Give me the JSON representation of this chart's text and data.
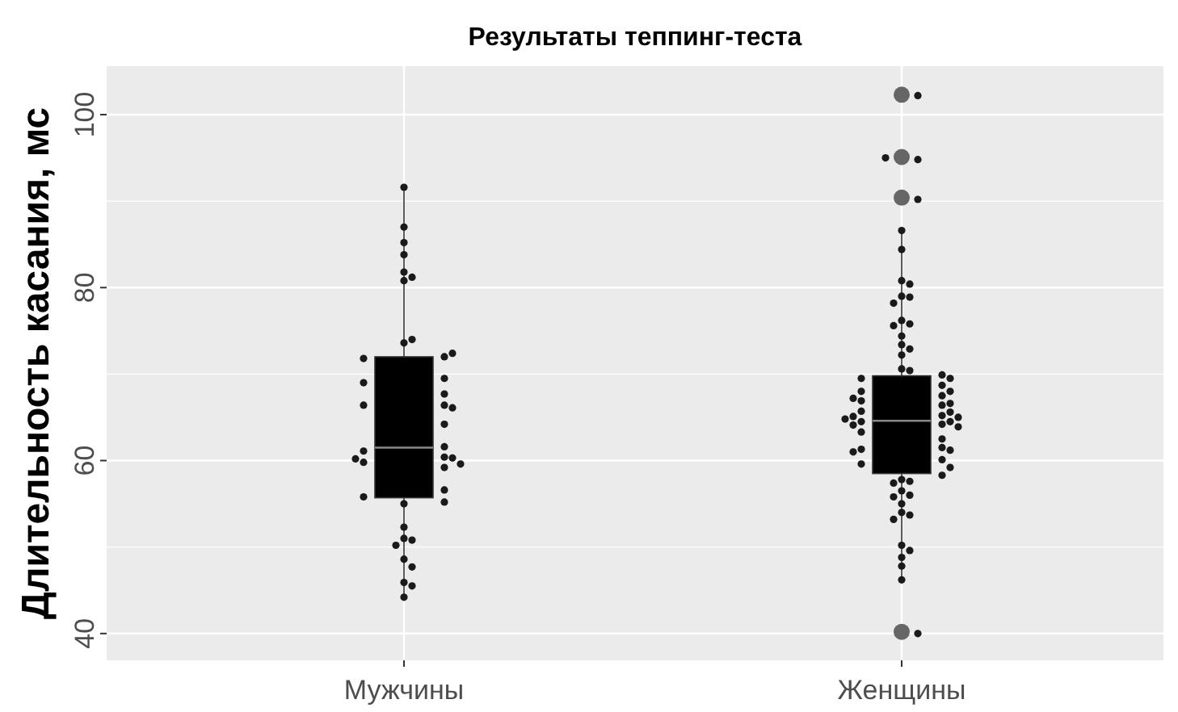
{
  "chart_data": {
    "type": "box",
    "title": "Результаты теппинг-теста",
    "ylabel": "Длительность касания, мс",
    "categories": [
      "Мужчины",
      "Женщины"
    ],
    "ylim": [
      36.9,
      105.6
    ],
    "yticks": [
      40,
      {
        "value": 50,
        "label": null
      },
      60,
      {
        "value": 70,
        "label": null
      },
      80,
      {
        "value": 90,
        "label": null
      },
      100
    ],
    "grid": true,
    "series": [
      {
        "color": "#000000",
        "boxes": [
          {
            "low": 44.2,
            "q1": 55.7,
            "median": 61.5,
            "q3": 72.0,
            "high": 91.5
          },
          {
            "low": 46.3,
            "q1": 58.5,
            "median": 64.6,
            "q3": 69.8,
            "high": 86.6,
            "outliers": [
              102.3,
              95.1,
              90.4,
              40.2
            ]
          }
        ]
      },
      {
        "type": "scatter",
        "color": "#1a1a1a",
        "marker": "circle",
        "x": [
          "Мужчины",
          "Мужчины",
          "Мужчины",
          "Мужчины",
          "Мужчины",
          "Мужчины",
          "Мужчины",
          "Мужчины",
          "Мужчины",
          "Мужчины",
          "Мужчины",
          "Мужчины",
          "Мужчины",
          "Мужчины",
          "Мужчины",
          "Мужчины",
          "Мужчины",
          "Мужчины",
          "Мужчины",
          "Мужчины",
          "Мужчины",
          "Мужчины",
          "Мужчины",
          "Мужчины",
          "Мужчины",
          "Мужчины",
          "Мужчины",
          "Мужчины",
          "Мужчины",
          "Мужчины",
          "Мужчины",
          "Мужчины",
          "Мужчины",
          "Мужчины",
          "Мужчины",
          "Мужчины",
          "Мужчины",
          "Мужчины",
          "Мужчины",
          "Мужчины",
          "Женщины",
          "Женщины",
          "Женщины",
          "Женщины",
          "Женщины",
          "Женщины",
          "Женщины",
          "Женщины",
          "Женщины",
          "Женщины",
          "Женщины",
          "Женщины",
          "Женщины",
          "Женщины",
          "Женщины",
          "Женщины",
          "Женщины",
          "Женщины",
          "Женщины",
          "Женщины",
          "Женщины",
          "Женщины",
          "Женщины",
          "Женщины",
          "Женщины",
          "Женщины",
          "Женщины",
          "Женщины",
          "Женщины",
          "Женщины",
          "Женщины",
          "Женщины",
          "Женщины",
          "Женщины",
          "Женщины",
          "Женщины",
          "Женщины",
          "Женщины",
          "Женщины",
          "Женщины",
          "Женщины",
          "Женщины",
          "Женщины",
          "Женщины",
          "Женщины",
          "Женщины",
          "Женщины",
          "Женщины",
          "Женщины",
          "Женщины",
          "Женщины",
          "Женщины",
          "Женщины",
          "Женщины",
          "Женщины",
          "Женщины",
          "Женщины",
          "Женщины",
          "Женщины",
          "Женщины",
          "Женщины",
          "Женщины",
          "Женщины",
          "Женщины",
          "Женщины",
          "Женщины",
          "Женщины",
          "Женщины"
        ],
        "values": [
          91.6,
          87.0,
          85.2,
          80.8,
          73.6,
          72.0,
          83.8,
          81.8,
          81.2,
          74.0,
          71.8,
          72.4,
          69.5,
          69.0,
          67.7,
          66.4,
          66.4,
          66.1,
          64.2,
          61.6,
          61.1,
          60.4,
          60.3,
          60.2,
          59.8,
          59.6,
          59.2,
          56.6,
          55.8,
          55.2,
          55.0,
          52.3,
          51.0,
          50.8,
          50.2,
          48.6,
          47.7,
          45.9,
          45.5,
          44.2,
          102.2,
          94.8,
          95.0,
          90.2,
          86.6,
          84.4,
          80.8,
          80.4,
          79.0,
          78.9,
          78.2,
          76.2,
          75.8,
          75.6,
          74.4,
          73.4,
          72.9,
          72.2,
          70.6,
          70.4,
          69.9,
          69.5,
          69.5,
          68.7,
          68.0,
          68.0,
          67.5,
          67.2,
          66.9,
          66.6,
          66.4,
          65.7,
          65.6,
          65.2,
          65.1,
          65.0,
          64.8,
          64.5,
          64.5,
          64.2,
          64.1,
          63.9,
          63.3,
          62.5,
          61.5,
          61.3,
          61.2,
          61.0,
          60.1,
          59.6,
          59.2,
          58.3,
          57.8,
          57.6,
          57.4,
          56.5,
          56.0,
          55.8,
          55.0,
          54.0,
          53.7,
          53.2,
          50.2,
          49.6,
          48.8,
          47.8,
          46.2,
          40.0
        ]
      }
    ]
  }
}
